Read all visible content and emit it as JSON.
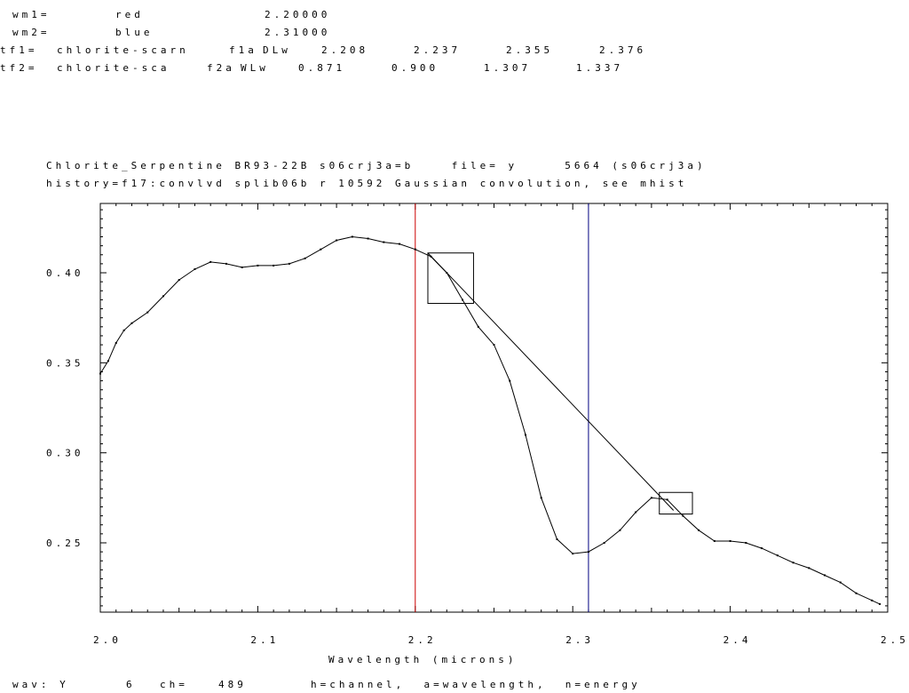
{
  "header": {
    "wm1": {
      "label": "wm1=",
      "color_name": "red",
      "value": "2.20000"
    },
    "wm2": {
      "label": "wm2=",
      "color_name": "blue",
      "value": "2.31000"
    },
    "tf1": {
      "label": "tf1=",
      "name": "chlorite-scarn",
      "feature": "f1a",
      "type": "DLw",
      "v1": "2.208",
      "v2": "2.237",
      "v3": "2.355",
      "v4": "2.376"
    },
    "tf2": {
      "label": "tf2=",
      "name": "chlorite-sca",
      "feature": "f2a",
      "type": "WLw",
      "v1": "0.871",
      "v2": "0.900",
      "v3": "1.307",
      "v4": "1.337"
    }
  },
  "plot_title": {
    "line1": "Chlorite_Serpentine BR93-22B s06crj3a=b    file= y     5664 (s06crj3a)",
    "line2": "history=f17:convlvd splib06b r 10592 Gaussian convolution, see mhist"
  },
  "status_bar": {
    "wav": "wav: Y",
    "wav_num": "6",
    "ch": "ch=",
    "ch_num": "489",
    "hint": "h=channel,  a=wavelength,  n=energy"
  },
  "colors": {
    "marker1": "#cc0000",
    "marker2": "#000080",
    "trace": "#000000"
  },
  "chart_data": {
    "type": "line",
    "title": "Chlorite_Serpentine BR93-22B s06crj3a=b",
    "xlabel": "Wavelength (microns)",
    "ylabel": "",
    "xlim": [
      2.0,
      2.5
    ],
    "ylim": [
      0.2115,
      0.4385
    ],
    "xticks": [
      "2.0",
      "2.1",
      "2.2",
      "2.3",
      "2.4",
      "2.5"
    ],
    "yticks": [
      "0.25",
      "0.30",
      "0.35",
      "0.40"
    ],
    "markers": [
      {
        "x": 2.2,
        "color": "#cc0000"
      },
      {
        "x": 2.31,
        "color": "#000080"
      }
    ],
    "continuum": [
      [
        2.208,
        0.411
      ],
      [
        2.364,
        0.268
      ]
    ],
    "feature_boxes": [
      {
        "x1": 2.208,
        "x2": 2.237,
        "y1": 0.383,
        "y2": 0.411
      },
      {
        "x1": 2.355,
        "x2": 2.376,
        "y1": 0.266,
        "y2": 0.278
      }
    ],
    "series": [
      {
        "x": [
          2.0,
          2.005,
          2.01,
          2.015,
          2.02,
          2.03,
          2.04,
          2.05,
          2.06,
          2.07,
          2.08,
          2.09,
          2.1,
          2.11,
          2.12,
          2.13,
          2.14,
          2.15,
          2.16,
          2.17,
          2.18,
          2.19,
          2.2,
          2.21,
          2.22,
          2.23,
          2.24,
          2.25,
          2.26,
          2.27,
          2.28,
          2.29,
          2.3,
          2.31,
          2.32,
          2.33,
          2.34,
          2.35,
          2.36,
          2.37,
          2.38,
          2.39,
          2.4,
          2.41,
          2.42,
          2.43,
          2.44,
          2.45,
          2.46,
          2.47,
          2.48,
          2.49,
          2.495
        ],
        "values": [
          0.344,
          0.351,
          0.361,
          0.368,
          0.372,
          0.378,
          0.387,
          0.396,
          0.402,
          0.406,
          0.405,
          0.403,
          0.404,
          0.404,
          0.405,
          0.408,
          0.413,
          0.418,
          0.42,
          0.419,
          0.417,
          0.416,
          0.413,
          0.409,
          0.4,
          0.385,
          0.37,
          0.36,
          0.34,
          0.31,
          0.275,
          0.252,
          0.244,
          0.245,
          0.25,
          0.257,
          0.267,
          0.275,
          0.274,
          0.265,
          0.257,
          0.251,
          0.251,
          0.25,
          0.247,
          0.243,
          0.239,
          0.236,
          0.232,
          0.228,
          0.222,
          0.218,
          0.216
        ]
      }
    ]
  }
}
